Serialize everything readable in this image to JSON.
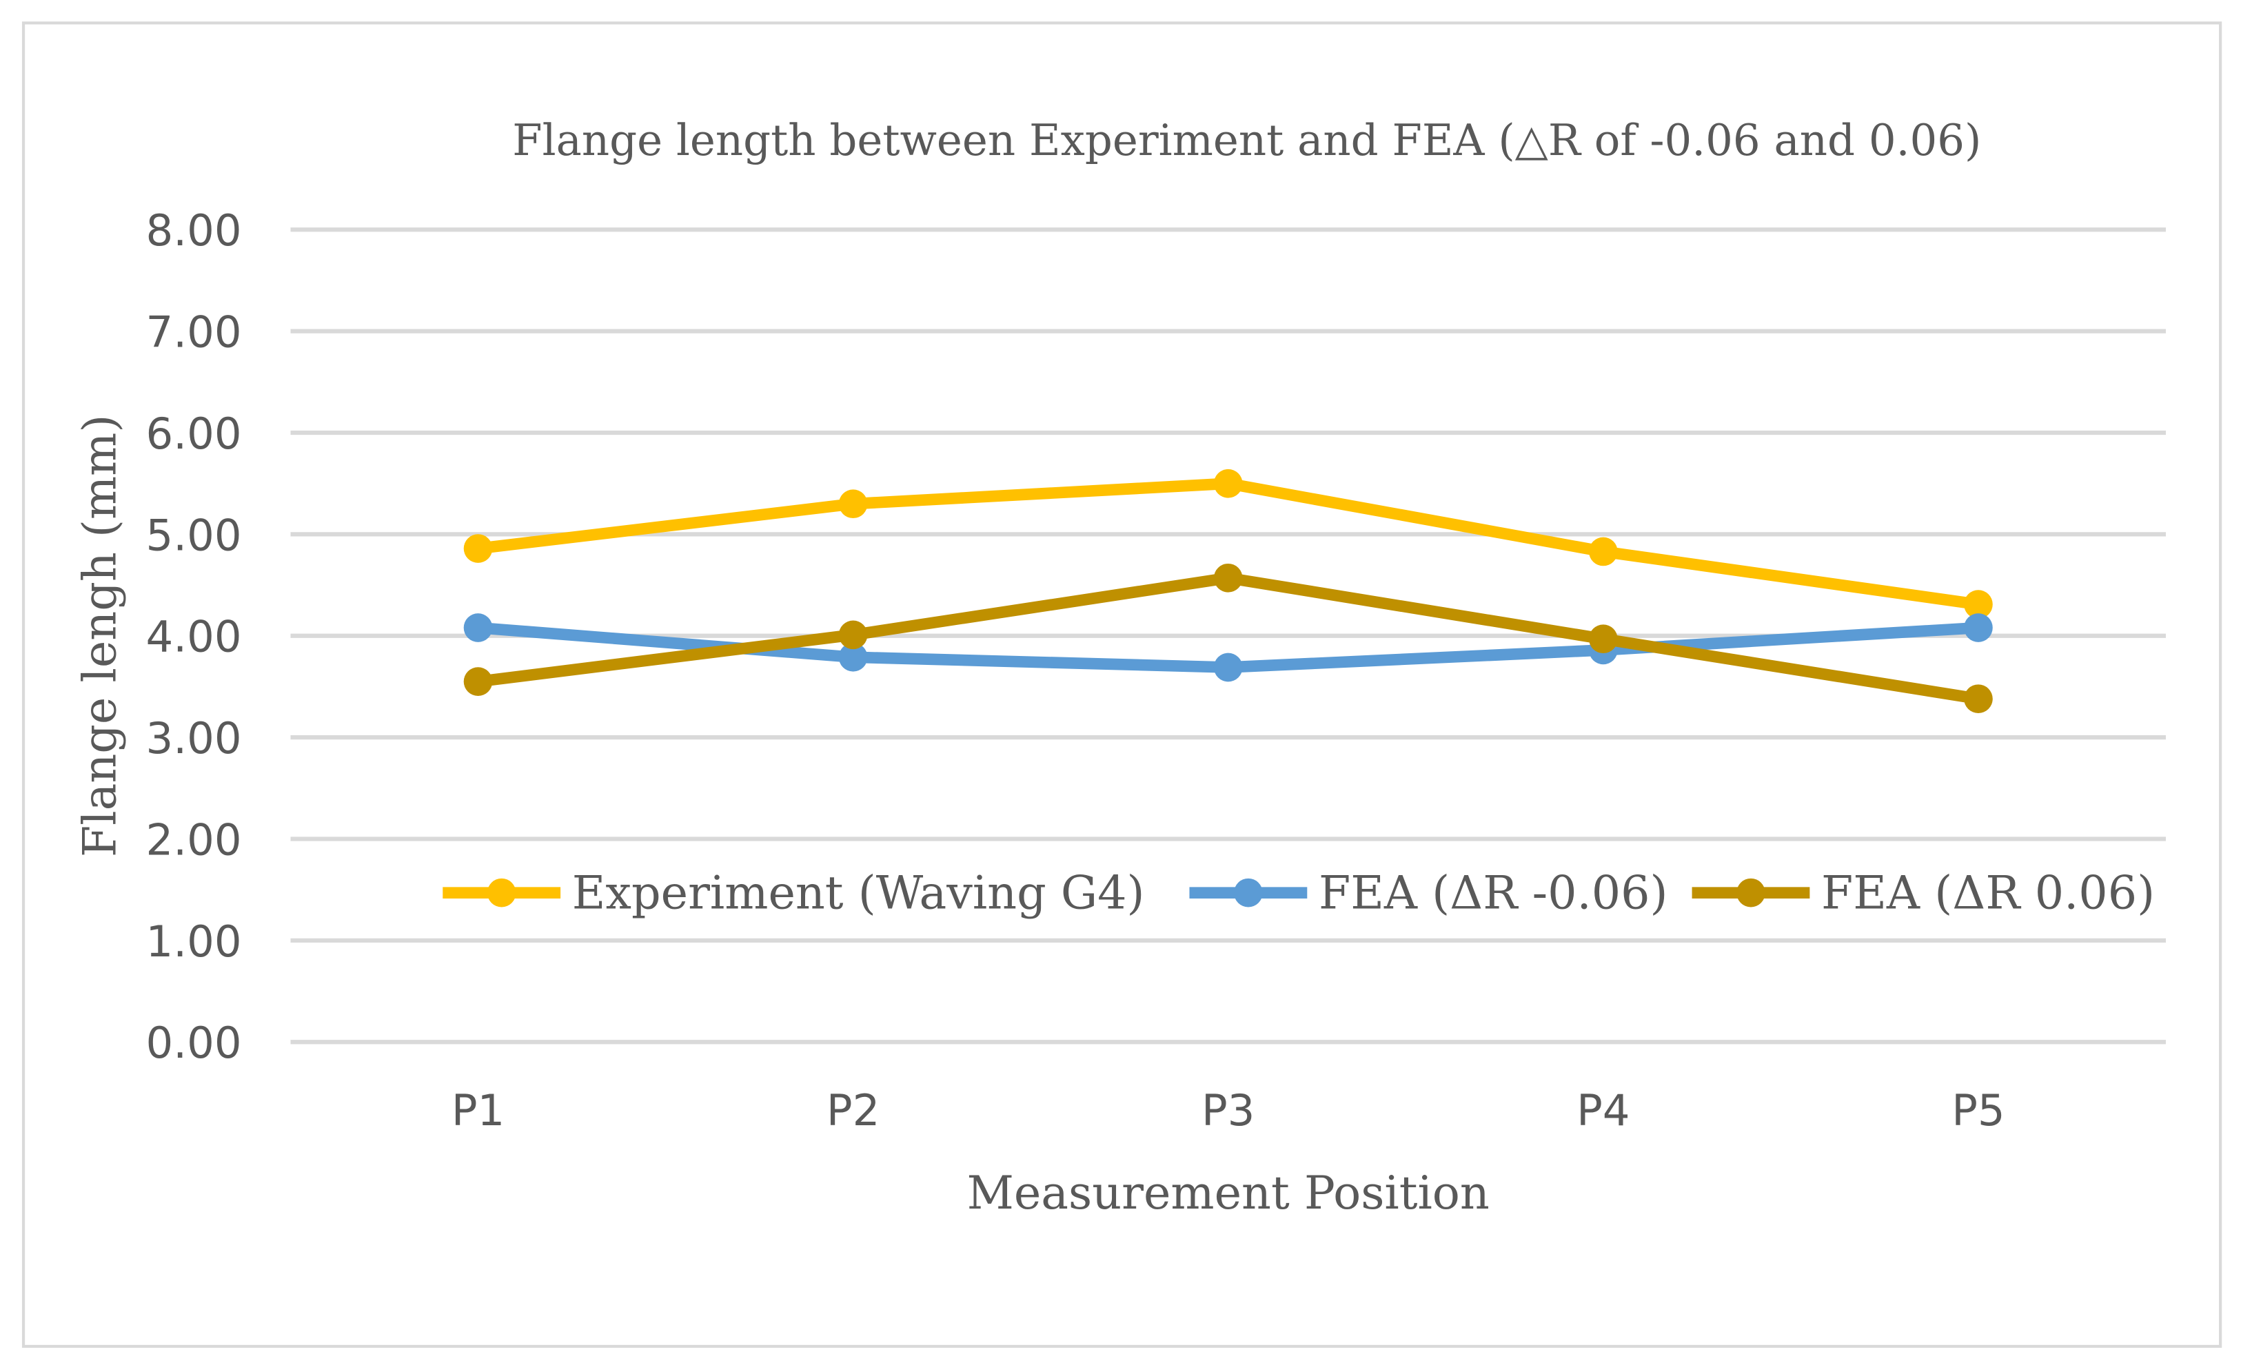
{
  "chart_data": {
    "type": "line",
    "title": "Flange length between Experiment and FEA (△R of -0.06 and 0.06)",
    "xlabel": "Measurement Position",
    "ylabel": "Flange lengh (mm)",
    "categories": [
      "P1",
      "P2",
      "P3",
      "P4",
      "P5"
    ],
    "ylim": [
      0,
      8
    ],
    "yticks": [
      "0.00",
      "1.00",
      "2.00",
      "3.00",
      "4.00",
      "5.00",
      "6.00",
      "7.00",
      "8.00"
    ],
    "grid": true,
    "legend_position": "inside-bottom",
    "series": [
      {
        "name": "Experiment (Waving G4)",
        "color": "#FFC000",
        "values": [
          4.86,
          5.3,
          5.5,
          4.83,
          4.31
        ]
      },
      {
        "name": "FEA (ΔR -0.06)",
        "color": "#5B9BD5",
        "values": [
          4.08,
          3.79,
          3.69,
          3.86,
          4.08
        ]
      },
      {
        "name": "FEA (ΔR 0.06)",
        "color": "#BF9000",
        "values": [
          3.55,
          4.01,
          4.57,
          3.97,
          3.38
        ]
      }
    ]
  }
}
